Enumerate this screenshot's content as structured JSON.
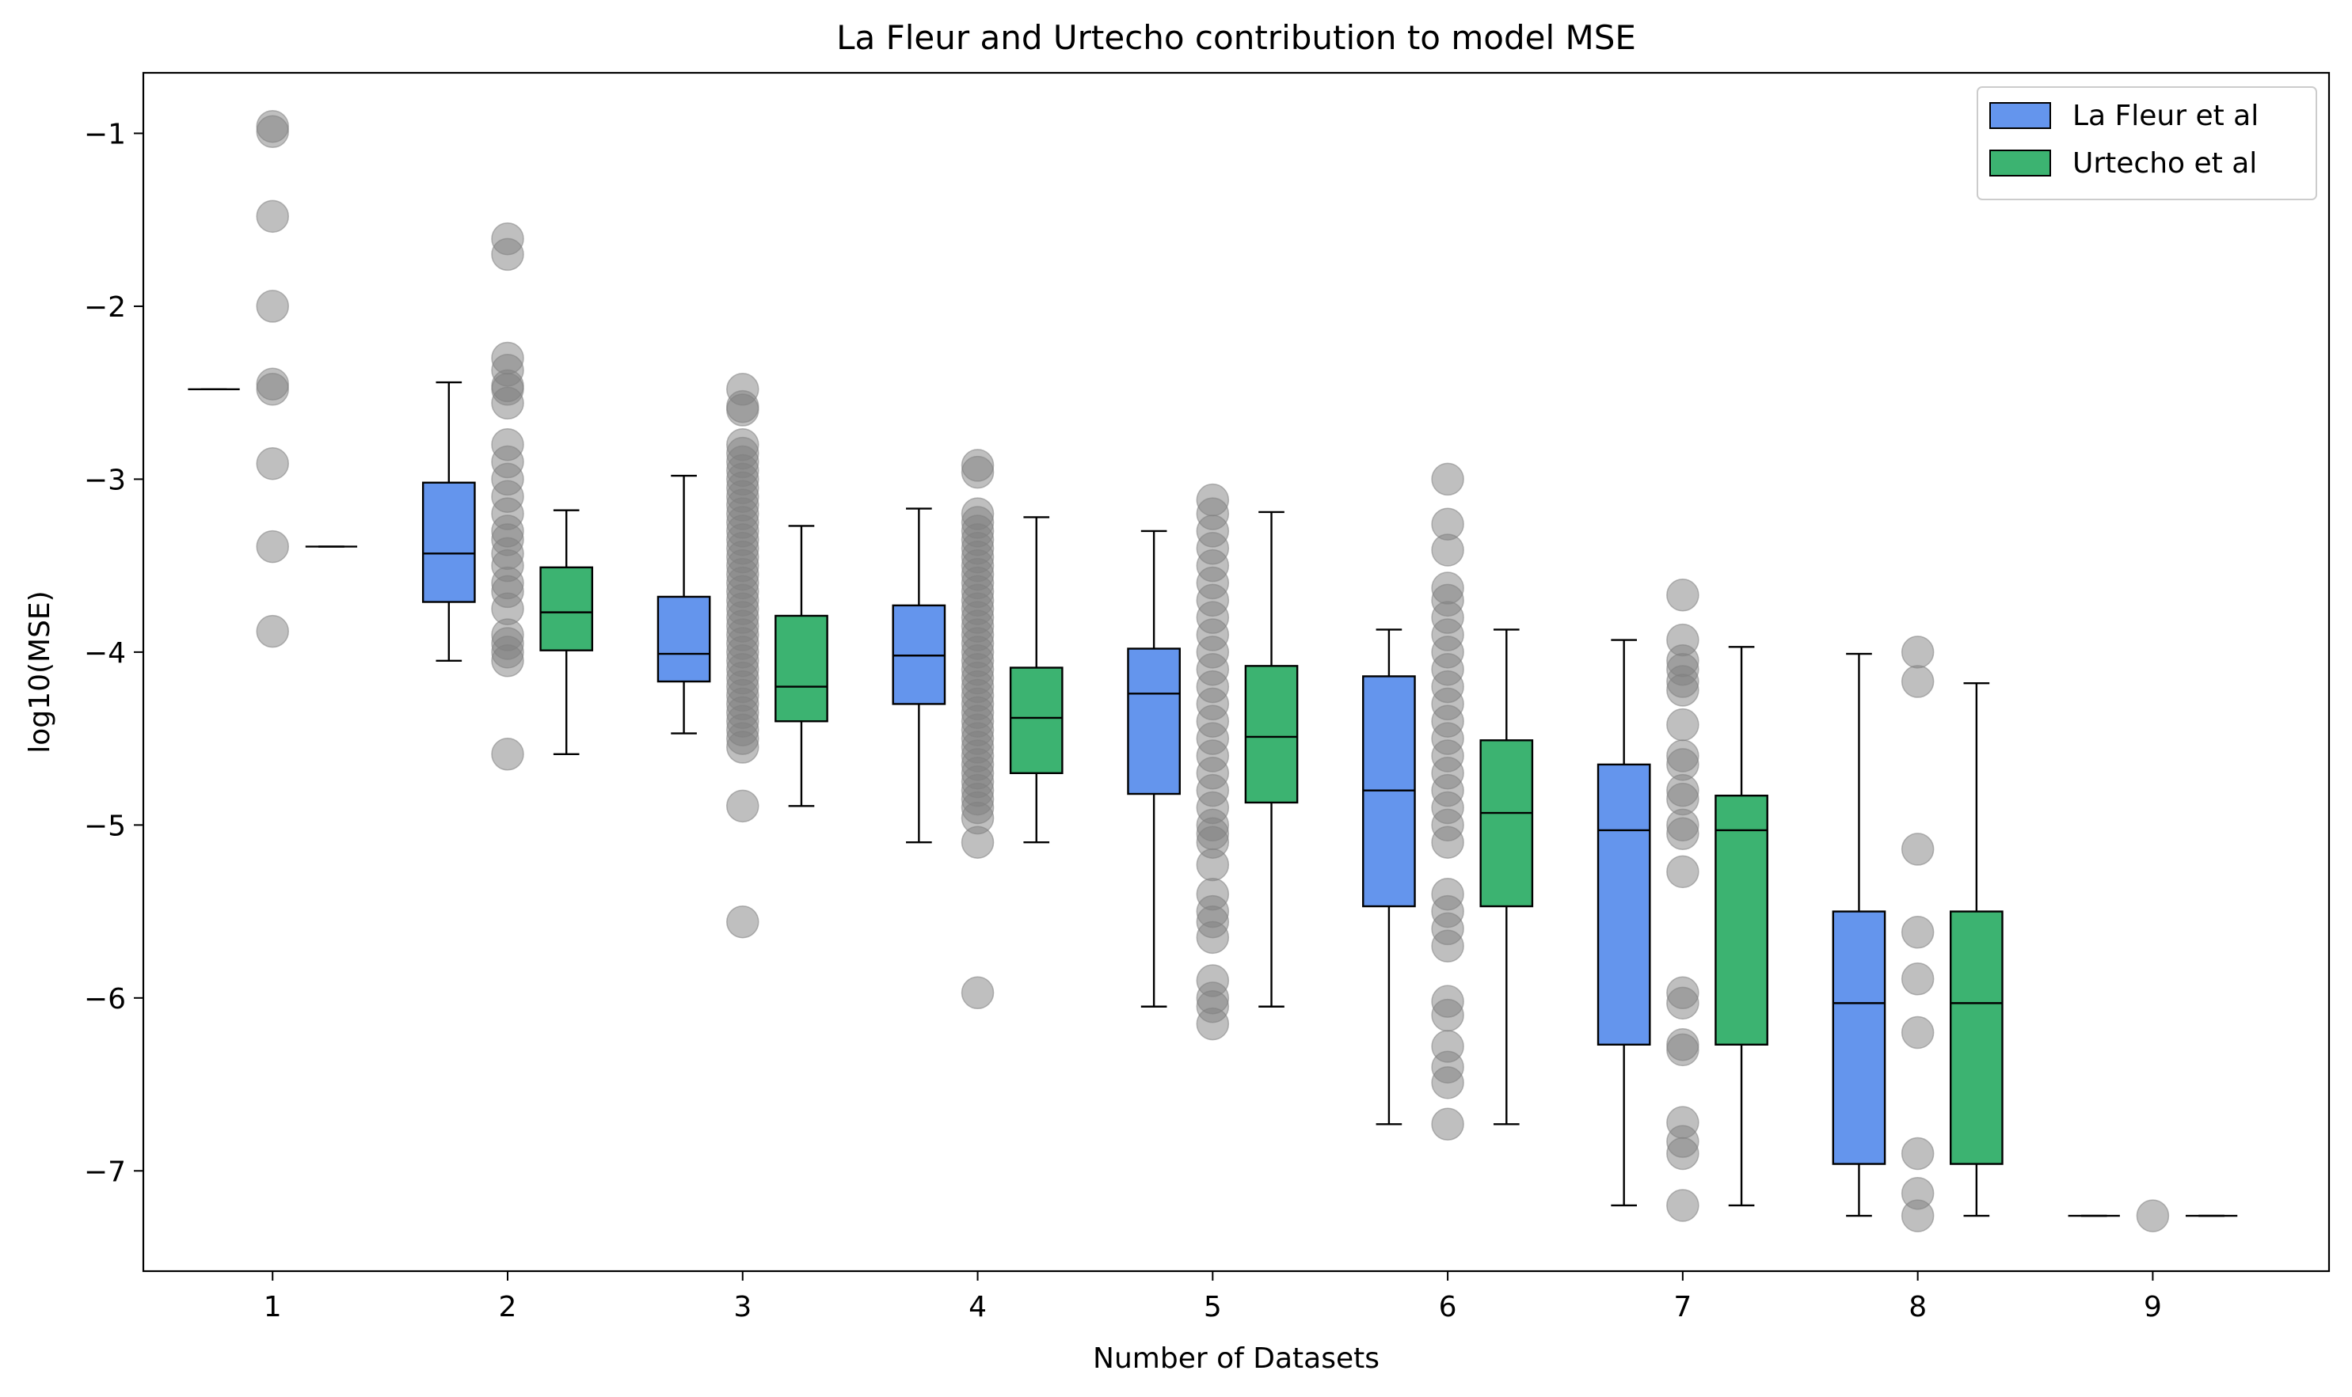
{
  "chart_data": {
    "type": "box",
    "title": "La Fleur and Urtecho contribution to model MSE",
    "xlabel": "Number of Datasets",
    "ylabel": "log10(MSE)",
    "xlim": [
      0.45,
      9.75
    ],
    "ylim": [
      -7.58,
      -0.65
    ],
    "x_ticks": [
      1,
      2,
      3,
      4,
      5,
      6,
      7,
      8,
      9
    ],
    "y_ticks": [
      -7,
      -6,
      -5,
      -4,
      -3,
      -2,
      -1
    ],
    "y_tick_labels": [
      "−7",
      "−6",
      "−5",
      "−4",
      "−3",
      "−2",
      "−1"
    ],
    "legend": {
      "position": "top-right",
      "entries": [
        {
          "label": "La Fleur et al",
          "color": "#6495ED"
        },
        {
          "label": "Urtecho et al",
          "color": "#3CB371"
        }
      ]
    },
    "series": [
      {
        "name": "La Fleur et al",
        "color": "#6495ED",
        "offset": -0.25,
        "boxes": [
          {
            "x": 1,
            "whislo": -2.48,
            "q1": -2.48,
            "med": -2.48,
            "q3": -2.48,
            "whishi": -2.48
          },
          {
            "x": 2,
            "whislo": -4.05,
            "q1": -3.71,
            "med": -3.43,
            "q3": -3.02,
            "whishi": -2.44
          },
          {
            "x": 3,
            "whislo": -4.47,
            "q1": -4.17,
            "med": -4.01,
            "q3": -3.68,
            "whishi": -2.98
          },
          {
            "x": 4,
            "whislo": -5.1,
            "q1": -4.3,
            "med": -4.02,
            "q3": -3.73,
            "whishi": -3.17
          },
          {
            "x": 5,
            "whislo": -6.05,
            "q1": -4.82,
            "med": -4.24,
            "q3": -3.98,
            "whishi": -3.3
          },
          {
            "x": 6,
            "whislo": -6.73,
            "q1": -5.47,
            "med": -4.8,
            "q3": -4.14,
            "whishi": -3.87
          },
          {
            "x": 7,
            "whislo": -7.2,
            "q1": -6.27,
            "med": -5.03,
            "q3": -4.65,
            "whishi": -3.93
          },
          {
            "x": 8,
            "whislo": -7.26,
            "q1": -6.96,
            "med": -6.03,
            "q3": -5.5,
            "whishi": -4.01
          },
          {
            "x": 9,
            "whislo": -7.26,
            "q1": -7.26,
            "med": -7.26,
            "q3": -7.26,
            "whishi": -7.26
          }
        ]
      },
      {
        "name": "Urtecho et al",
        "color": "#3CB371",
        "offset": 0.25,
        "boxes": [
          {
            "x": 1,
            "whislo": -3.39,
            "q1": -3.39,
            "med": -3.39,
            "q3": -3.39,
            "whishi": -3.39
          },
          {
            "x": 2,
            "whislo": -4.59,
            "q1": -3.99,
            "med": -3.77,
            "q3": -3.51,
            "whishi": -3.18
          },
          {
            "x": 3,
            "whislo": -4.89,
            "q1": -4.4,
            "med": -4.2,
            "q3": -3.79,
            "whishi": -3.27
          },
          {
            "x": 4,
            "whislo": -5.1,
            "q1": -4.7,
            "med": -4.38,
            "q3": -4.09,
            "whishi": -3.22
          },
          {
            "x": 5,
            "whislo": -6.05,
            "q1": -4.87,
            "med": -4.49,
            "q3": -4.08,
            "whishi": -3.19
          },
          {
            "x": 6,
            "whislo": -6.73,
            "q1": -5.47,
            "med": -4.93,
            "q3": -4.51,
            "whishi": -3.87
          },
          {
            "x": 7,
            "whislo": -7.2,
            "q1": -6.27,
            "med": -5.03,
            "q3": -4.83,
            "whishi": -3.97
          },
          {
            "x": 8,
            "whislo": -7.26,
            "q1": -6.96,
            "med": -6.03,
            "q3": -5.5,
            "whishi": -4.18
          },
          {
            "x": 9,
            "whislo": -7.26,
            "q1": -7.26,
            "med": -7.26,
            "q3": -7.26,
            "whishi": -7.26
          }
        ]
      }
    ],
    "points_color": "#808080",
    "points": [
      {
        "x": 1,
        "y": [
          -0.96,
          -0.99,
          -1.48,
          -2.0,
          -2.45,
          -2.48,
          -2.91,
          -3.39,
          -3.88
        ]
      },
      {
        "x": 2,
        "y": [
          -1.61,
          -1.7,
          -2.3,
          -2.37,
          -2.46,
          -2.48,
          -2.56,
          -2.8,
          -2.9,
          -3.0,
          -3.1,
          -3.2,
          -3.3,
          -3.35,
          -3.43,
          -3.5,
          -3.6,
          -3.65,
          -3.75,
          -3.9,
          -3.95,
          -4.0,
          -4.05,
          -4.59
        ]
      },
      {
        "x": 3,
        "y": [
          -2.48,
          -2.58,
          -2.6,
          -2.8,
          -2.85,
          -2.9,
          -2.95,
          -3.0,
          -3.05,
          -3.1,
          -3.15,
          -3.2,
          -3.25,
          -3.3,
          -3.35,
          -3.4,
          -3.45,
          -3.5,
          -3.55,
          -3.6,
          -3.65,
          -3.7,
          -3.75,
          -3.8,
          -3.85,
          -3.9,
          -3.95,
          -4.0,
          -4.05,
          -4.1,
          -4.15,
          -4.2,
          -4.25,
          -4.3,
          -4.35,
          -4.4,
          -4.45,
          -4.5,
          -4.55,
          -4.89,
          -5.56
        ]
      },
      {
        "x": 4,
        "y": [
          -2.92,
          -2.96,
          -3.2,
          -3.25,
          -3.3,
          -3.35,
          -3.4,
          -3.45,
          -3.5,
          -3.55,
          -3.6,
          -3.65,
          -3.7,
          -3.75,
          -3.8,
          -3.85,
          -3.9,
          -3.95,
          -4.0,
          -4.05,
          -4.1,
          -4.15,
          -4.2,
          -4.25,
          -4.3,
          -4.35,
          -4.4,
          -4.45,
          -4.5,
          -4.55,
          -4.6,
          -4.65,
          -4.7,
          -4.75,
          -4.8,
          -4.85,
          -4.9,
          -4.96,
          -5.1,
          -5.97
        ]
      },
      {
        "x": 5,
        "y": [
          -3.12,
          -3.2,
          -3.3,
          -3.4,
          -3.5,
          -3.6,
          -3.7,
          -3.8,
          -3.9,
          -4.0,
          -4.1,
          -4.2,
          -4.3,
          -4.4,
          -4.5,
          -4.6,
          -4.7,
          -4.8,
          -4.9,
          -5.0,
          -5.05,
          -5.1,
          -5.23,
          -5.4,
          -5.5,
          -5.56,
          -5.65,
          -5.9,
          -6.0,
          -6.05,
          -6.15
        ]
      },
      {
        "x": 6,
        "y": [
          -3.0,
          -3.26,
          -3.41,
          -3.63,
          -3.7,
          -3.8,
          -3.9,
          -4.0,
          -4.1,
          -4.2,
          -4.3,
          -4.4,
          -4.5,
          -4.6,
          -4.7,
          -4.8,
          -4.9,
          -5.0,
          -5.1,
          -5.4,
          -5.5,
          -5.6,
          -5.7,
          -6.02,
          -6.1,
          -6.28,
          -6.4,
          -6.49,
          -6.73
        ]
      },
      {
        "x": 7,
        "y": [
          -3.67,
          -3.93,
          -4.05,
          -4.1,
          -4.17,
          -4.22,
          -4.42,
          -4.6,
          -4.65,
          -4.8,
          -4.85,
          -5.0,
          -5.05,
          -5.27,
          -5.97,
          -6.03,
          -6.27,
          -6.3,
          -6.72,
          -6.83,
          -6.9,
          -7.2
        ]
      },
      {
        "x": 8,
        "y": [
          -4.0,
          -4.17,
          -5.14,
          -5.62,
          -5.89,
          -6.2,
          -6.9,
          -7.13,
          -7.26
        ]
      },
      {
        "x": 9,
        "y": [
          -7.26
        ]
      }
    ]
  }
}
